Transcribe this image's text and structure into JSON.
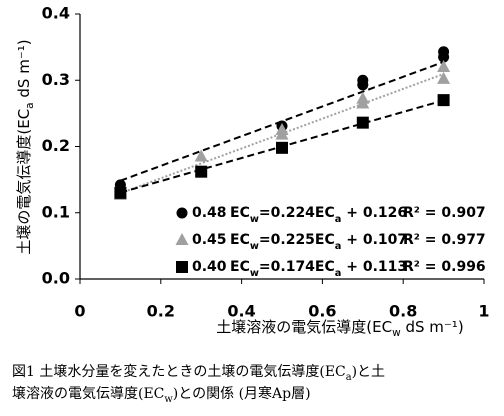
{
  "chart_data": {
    "type": "scatter",
    "xlim": [
      0,
      1
    ],
    "xticks": [
      0,
      0.2,
      0.4,
      0.6,
      0.8,
      1
    ],
    "ylim": [
      0,
      0.4
    ],
    "yticks": [
      {
        "value": 0,
        "label": "0.0"
      },
      0.1,
      0.2,
      0.3,
      0.4
    ],
    "x_label": [
      "土壌溶液の電気伝導度(EC",
      "w",
      " dS m⁻¹)"
    ],
    "y_label": [
      "土壌の電気伝導度(EC",
      "a",
      " dS m⁻¹)"
    ],
    "caption": [
      [
        "図1  土壌水分量を変えたときの土壌の電気伝導度(EC",
        "a",
        ")と土"
      ],
      [
        "壌溶液の電気伝導度(EC",
        "w",
        ")との関係  (月寒Ap層)"
      ]
    ],
    "series": [
      {
        "name": "0.48",
        "color": "#000000",
        "marker": "circle",
        "line_style": "dashed",
        "x": [
          0.1,
          0.5,
          0.7,
          0.7,
          0.9,
          0.9
        ],
        "values": [
          0.142,
          0.231,
          0.3,
          0.293,
          0.343,
          0.335
        ],
        "trend": {
          "slope": 0.224,
          "intercept": 0.126
        },
        "equation": [
          "EC",
          "w",
          "=0.224EC",
          "a",
          " + 0.126"
        ],
        "r2": "R² = 0.907"
      },
      {
        "name": "0.45",
        "color": "#a0a0a0",
        "marker": "triangle",
        "line_style": "dotted",
        "x": [
          0.1,
          0.3,
          0.5,
          0.5,
          0.7,
          0.7,
          0.9,
          0.9
        ],
        "values": [
          0.127,
          0.185,
          0.225,
          0.218,
          0.272,
          0.265,
          0.32,
          0.302
        ],
        "trend": {
          "slope": 0.225,
          "intercept": 0.107
        },
        "equation": [
          "EC",
          "w",
          "=0.225EC",
          "a",
          " + 0.107"
        ],
        "r2": "R² = 0.977"
      },
      {
        "name": "0.40",
        "color": "#000000",
        "marker": "square",
        "line_style": "dashed",
        "x": [
          0.1,
          0.3,
          0.5,
          0.7,
          0.9
        ],
        "values": [
          0.13,
          0.162,
          0.198,
          0.236,
          0.27
        ],
        "trend": {
          "slope": 0.174,
          "intercept": 0.113
        },
        "equation": [
          "EC",
          "w",
          "=0.174EC",
          "a",
          " + 0.113"
        ],
        "r2": "R² = 0.996"
      }
    ]
  }
}
